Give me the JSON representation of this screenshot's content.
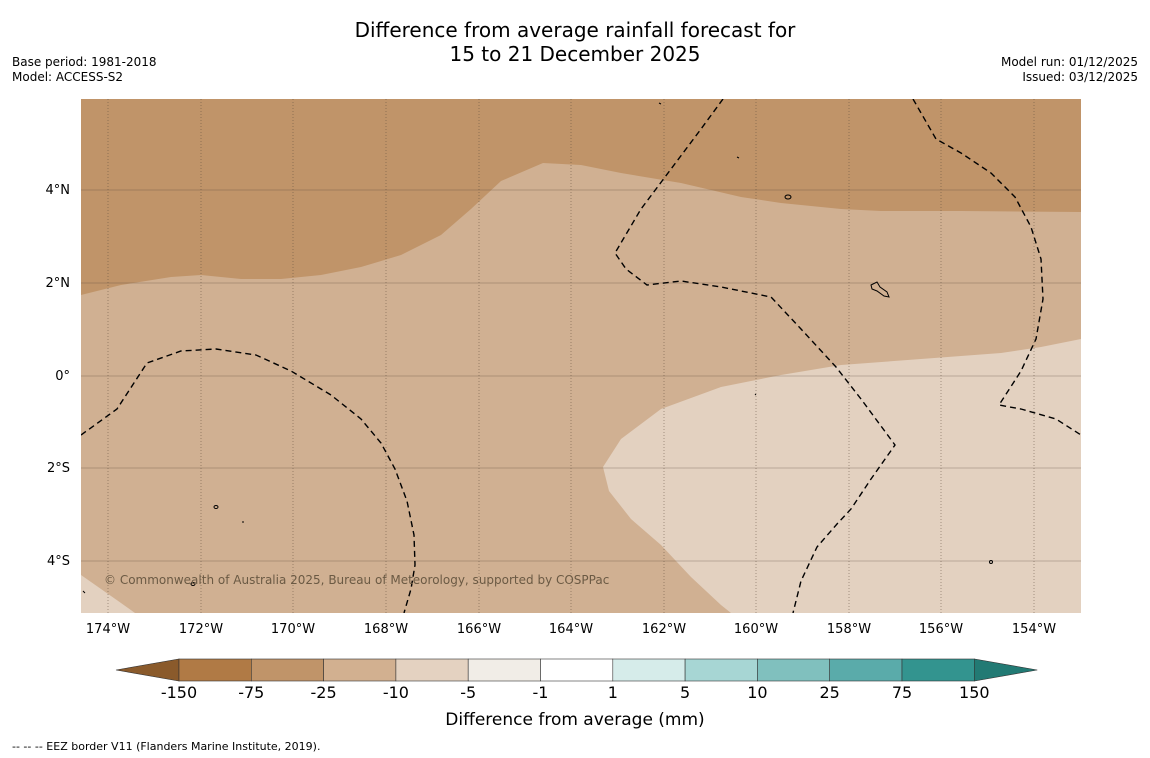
{
  "title": {
    "line1": "Difference from average rainfall forecast for",
    "line2": "15 to 21 December 2025"
  },
  "meta": {
    "base_period": "Base period: 1981-2018",
    "model": "Model: ACCESS-S2",
    "model_run": "Model run: 01/12/2025",
    "issued": "Issued: 03/12/2025"
  },
  "map": {
    "lat_labels": [
      "4°N",
      "2°N",
      "0°",
      "2°S",
      "4°S"
    ],
    "lon_labels": [
      "174°W",
      "172°W",
      "170°W",
      "168°W",
      "166°W",
      "164°W",
      "162°W",
      "160°W",
      "158°W",
      "156°W",
      "154°W"
    ],
    "copyright": "© Commonwealth of Australia 2025, Bureau of Meteorology, supported by COSPPac",
    "colors": {
      "band_minus75_to_minus25": "#c09469",
      "band_minus25_to_minus10": "#d0b092",
      "band_minus10_to_minus5": "#e3d1c0",
      "gridline": "#5a4a3a",
      "eez_line": "#000000"
    }
  },
  "colorbar": {
    "ticks": [
      "-150",
      "-75",
      "-25",
      "-10",
      "-5",
      "-1",
      "1",
      "5",
      "10",
      "25",
      "75",
      "150"
    ],
    "colors": [
      "#8a5a2b",
      "#b07a45",
      "#c09469",
      "#d2b090",
      "#e4d2c1",
      "#f1ede7",
      "#ffffff",
      "#d6ecea",
      "#a7d6d4",
      "#80c0be",
      "#5aabaa",
      "#33948f",
      "#227a74"
    ],
    "label": "Difference from average (mm)"
  },
  "legend": {
    "eez_note": "--  --  -- EEZ border V11 (Flanders Marine Institute, 2019)."
  }
}
